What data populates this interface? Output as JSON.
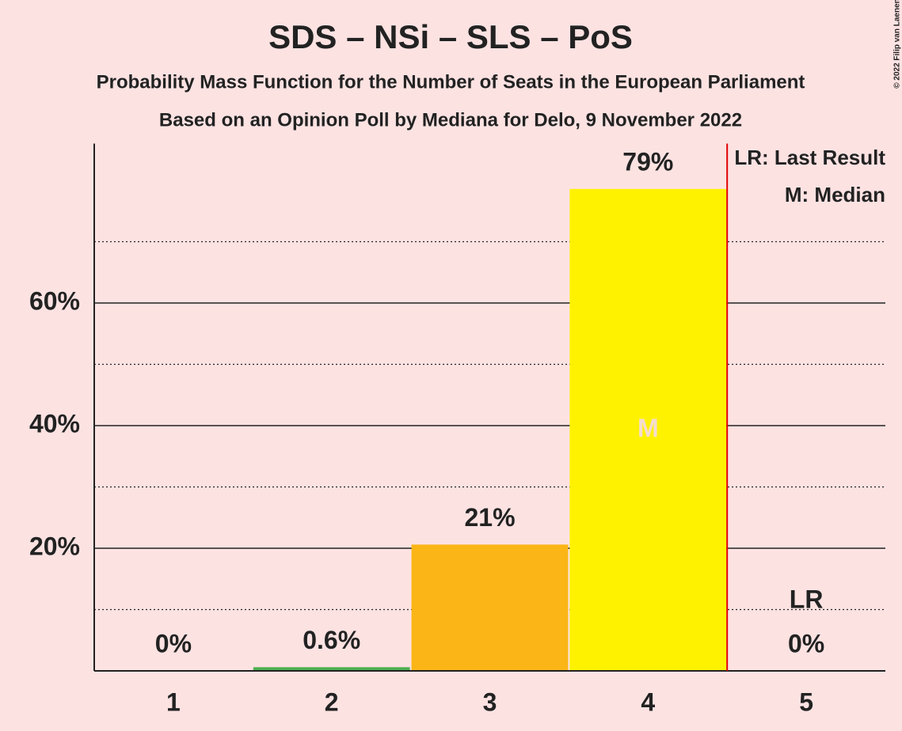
{
  "chart_data": {
    "type": "bar",
    "title": "SDS – NSi – SLS – PoS",
    "subtitle": "Probability Mass Function for the Number of Seats in the European Parliament",
    "source": "Based on an Opinion Poll by Mediana for Delo, 9 November 2022",
    "copyright": "© 2022 Filip van Laenen",
    "categories": [
      "1",
      "2",
      "3",
      "4",
      "5"
    ],
    "values": [
      0,
      0.6,
      20.6,
      78.6,
      0
    ],
    "value_labels": [
      "0%",
      "0.6%",
      "21%",
      "79%",
      "0%"
    ],
    "colors": [
      "#4caf50",
      "#4caf50",
      "#fbb516",
      "#fff200",
      "#4caf50"
    ],
    "ylim": [
      0,
      86
    ],
    "yticks": [
      {
        "value": 20,
        "label": "20%"
      },
      {
        "value": 40,
        "label": "40%"
      },
      {
        "value": 60,
        "label": "60%"
      }
    ],
    "minor_yticks": [
      10,
      30,
      50,
      70
    ],
    "grid": true,
    "last_result": "5",
    "last_result_color": "#e00000",
    "last_result_label": "LR",
    "median": "4",
    "median_label": "M",
    "legend": [
      "LR: Last Result",
      "M: Median"
    ]
  }
}
